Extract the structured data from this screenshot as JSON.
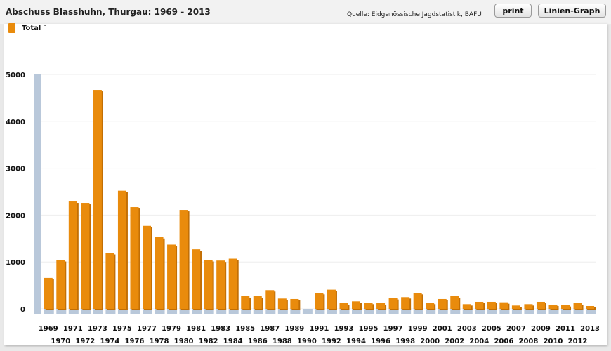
{
  "header": {
    "title": "Abschuss Blasshuhn, Thurgau: 1969 - 2013",
    "source": "Quelle: Eidgenössische Jagdstatistik, BAFU",
    "print_label": "print",
    "line_graph_label": "Linien-Graph"
  },
  "colors": {
    "bar": "#e98b0c",
    "bar_shadow": "#c26f05",
    "base": "#b9c8da",
    "grid": "#eeeeee"
  },
  "chart_data": {
    "type": "bar",
    "title": "Abschuss Blasshuhn, Thurgau: 1969 - 2013",
    "xlabel": "",
    "ylabel": "",
    "ylim": [
      0,
      5000
    ],
    "yticks": [
      0,
      1000,
      2000,
      3000,
      4000,
      5000
    ],
    "grid": true,
    "legend_position": "top-left",
    "categories": [
      "1969",
      "1970",
      "1971",
      "1972",
      "1973",
      "1974",
      "1975",
      "1976",
      "1977",
      "1978",
      "1979",
      "1980",
      "1981",
      "1982",
      "1983",
      "1984",
      "1985",
      "1986",
      "1987",
      "1988",
      "1989",
      "1990",
      "1991",
      "1992",
      "1993",
      "1994",
      "1995",
      "1996",
      "1997",
      "1998",
      "1999",
      "2000",
      "2001",
      "2002",
      "2003",
      "2004",
      "2005",
      "2006",
      "2007",
      "2008",
      "2009",
      "2010",
      "2011",
      "2012",
      "2013"
    ],
    "series": [
      {
        "name": "Total `",
        "values": [
          660,
          1040,
          2290,
          2260,
          4670,
          1190,
          2520,
          2170,
          1770,
          1530,
          1370,
          2110,
          1270,
          1040,
          1030,
          1070,
          270,
          270,
          400,
          220,
          210,
          0,
          340,
          410,
          120,
          160,
          130,
          120,
          230,
          250,
          340,
          130,
          210,
          270,
          100,
          150,
          150,
          140,
          70,
          100,
          150,
          90,
          80,
          120,
          60
        ]
      }
    ]
  }
}
